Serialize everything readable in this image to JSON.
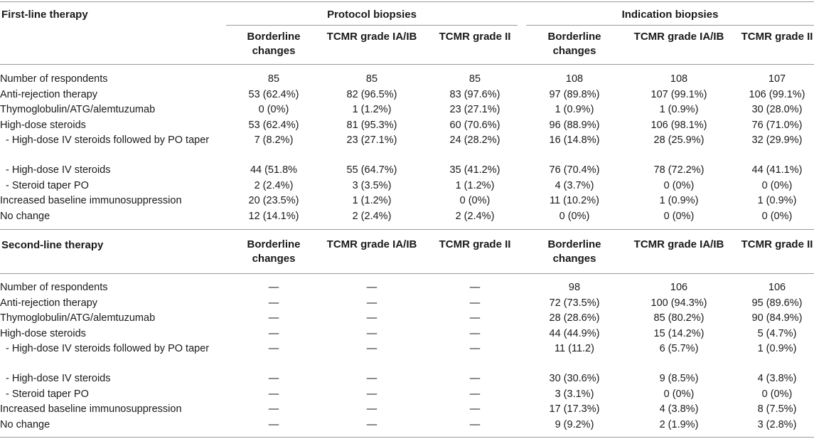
{
  "section1": {
    "title": "First-line therapy",
    "group_protocol": "Protocol biopsies",
    "group_indication": "Indication biopsies",
    "col_headers": [
      "Borderline changes",
      "TCMR grade IA/IB",
      "TCMR grade II",
      "Borderline changes",
      "TCMR grade IA/IB",
      "TCMR grade II"
    ],
    "rows": [
      {
        "label": "Number of respondents",
        "sub": false,
        "values": [
          "85",
          "85",
          "85",
          "108",
          "108",
          "107"
        ]
      },
      {
        "label": "Anti-rejection therapy",
        "sub": false,
        "values": [
          "53 (62.4%)",
          "82 (96.5%)",
          "83 (97.6%)",
          "97 (89.8%)",
          "107 (99.1%)",
          "106 (99.1%)"
        ]
      },
      {
        "label": "Thymoglobulin/ATG/alemtuzumab",
        "sub": false,
        "values": [
          "0 (0%)",
          "1 (1.2%)",
          "23 (27.1%)",
          "1 (0.9%)",
          "1 (0.9%)",
          "30 (28.0%)"
        ]
      },
      {
        "label": "High-dose steroids",
        "sub": false,
        "values": [
          "53 (62.4%)",
          "81 (95.3%)",
          "60 (70.6%)",
          "96 (88.9%)",
          "106 (98.1%)",
          "76 (71.0%)"
        ]
      },
      {
        "label": "- High-dose IV steroids followed by PO taper",
        "sub": true,
        "values": [
          "7 (8.2%)",
          "23 (27.1%)",
          "24 (28.2%)",
          "16 (14.8%)",
          "28 (25.9%)",
          "32 (29.9%)"
        ]
      },
      {
        "label": "- High-dose IV steroids",
        "sub": true,
        "values": [
          "44 (51.8%",
          "55 (64.7%)",
          "35 (41.2%)",
          "76 (70.4%)",
          "78 (72.2%)",
          "44 (41.1%)"
        ]
      },
      {
        "label": "- Steroid taper PO",
        "sub": true,
        "values": [
          "2 (2.4%)",
          "3 (3.5%)",
          "1 (1.2%)",
          "4 (3.7%)",
          "0 (0%)",
          "0 (0%)"
        ]
      },
      {
        "label": "Increased baseline immunosuppression",
        "sub": false,
        "values": [
          "20 (23.5%)",
          "1 (1.2%)",
          "0 (0%)",
          "11 (10.2%)",
          "1 (0.9%)",
          "1 (0.9%)"
        ]
      },
      {
        "label": "No change",
        "sub": false,
        "values": [
          "12 (14.1%)",
          "2 (2.4%)",
          "2 (2.4%)",
          "0 (0%)",
          "0 (0%)",
          "0 (0%)"
        ]
      }
    ]
  },
  "section2": {
    "title": "Second-line therapy",
    "col_headers": [
      "Borderline changes",
      "TCMR grade IA/IB",
      "TCMR grade II",
      "Borderline changes",
      "TCMR grade IA/IB",
      "TCMR grade II"
    ],
    "rows": [
      {
        "label": "Number of respondents",
        "sub": false,
        "values": [
          "—",
          "—",
          "—",
          "98",
          "106",
          "106"
        ]
      },
      {
        "label": "Anti-rejection therapy",
        "sub": false,
        "values": [
          "—",
          "—",
          "—",
          "72 (73.5%)",
          "100 (94.3%)",
          "95 (89.6%)"
        ]
      },
      {
        "label": "Thymoglobulin/ATG/alemtuzumab",
        "sub": false,
        "values": [
          "—",
          "—",
          "—",
          "28 (28.6%)",
          "85 (80.2%)",
          "90 (84.9%)"
        ]
      },
      {
        "label": "High-dose steroids",
        "sub": false,
        "values": [
          "—",
          "—",
          "—",
          "44 (44.9%)",
          "15 (14.2%)",
          "5 (4.7%)"
        ]
      },
      {
        "label": "- High-dose IV steroids followed by PO taper",
        "sub": true,
        "values": [
          "—",
          "—",
          "—",
          "11 (11.2)",
          "6 (5.7%)",
          "1 (0.9%)"
        ]
      },
      {
        "label": "- High-dose IV steroids",
        "sub": true,
        "values": [
          "—",
          "—",
          "—",
          "30 (30.6%)",
          "9 (8.5%)",
          "4 (3.8%)"
        ]
      },
      {
        "label": "- Steroid taper PO",
        "sub": true,
        "values": [
          "—",
          "—",
          "—",
          "3 (3.1%)",
          "0 (0%)",
          "0 (0%)"
        ]
      },
      {
        "label": "Increased baseline immunosuppression",
        "sub": false,
        "values": [
          "—",
          "—",
          "—",
          "17 (17.3%)",
          "4 (3.8%)",
          "8 (7.5%)"
        ]
      },
      {
        "label": "No change",
        "sub": false,
        "values": [
          "—",
          "—",
          "—",
          "9 (9.2%)",
          "2 (1.9%)",
          "3 (2.8%)"
        ]
      }
    ]
  }
}
